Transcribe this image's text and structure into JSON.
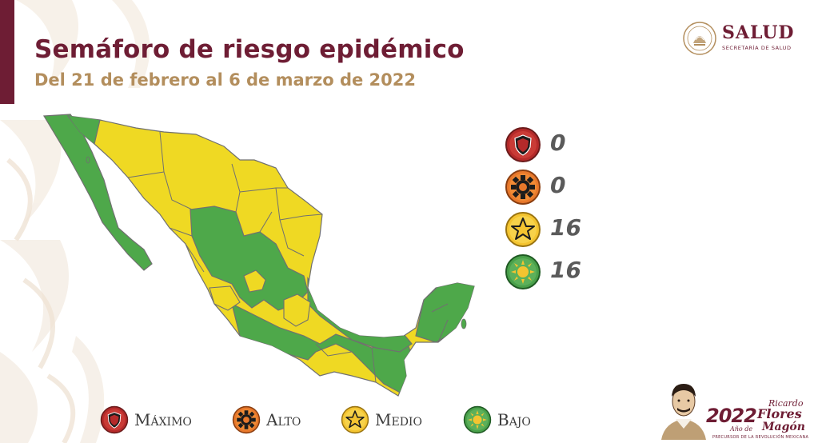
{
  "header": {
    "title": "Semáforo de riesgo epidémico",
    "subtitle": "Del 21 de febrero al 6 de marzo de 2022"
  },
  "logo": {
    "name": "SALUD",
    "subname": "SECRETARÍA DE SALUD"
  },
  "levels": [
    {
      "key": "maximo",
      "label": "Máximo",
      "count": "0",
      "color": "#b52a2a",
      "icon": "shield-icon"
    },
    {
      "key": "alto",
      "label": "Alto",
      "count": "0",
      "color": "#e8782b",
      "icon": "gear-icon"
    },
    {
      "key": "medio",
      "label": "Medio",
      "count": "16",
      "color": "#f4c430",
      "icon": "star-icon"
    },
    {
      "key": "bajo",
      "label": "Bajo",
      "count": "16",
      "color": "#49a04a",
      "icon": "sun-icon"
    }
  ],
  "map_colors": {
    "medio": "#efd923",
    "bajo": "#4ea84a",
    "border": "#707070"
  },
  "anniversary": {
    "year": "2022",
    "anio": "Año de",
    "name_first": "Ricardo",
    "name_middle": "Flores",
    "name_last": "Magón",
    "tagline": "PRECURSOR DE LA REVOLUCIÓN MEXICANA"
  }
}
